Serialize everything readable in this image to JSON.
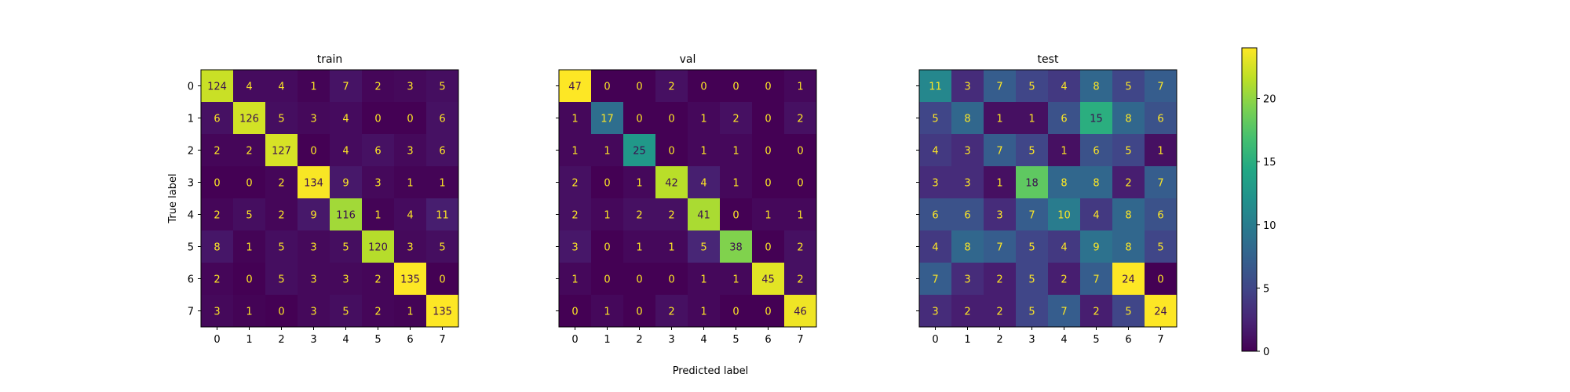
{
  "figure": {
    "shared_xlabel": "Predicted label",
    "shared_ylabel": "True label"
  },
  "colorbar": {
    "min": 0,
    "max": 24,
    "ticks": [
      "0",
      "5",
      "10",
      "15",
      "20"
    ],
    "tick_values": [
      0,
      5,
      10,
      15,
      20
    ],
    "colormap": "viridis"
  },
  "chart_data": [
    {
      "type": "heatmap",
      "title": "train",
      "xlabel": "Predicted label",
      "ylabel": "True label",
      "x_categories": [
        "0",
        "1",
        "2",
        "3",
        "4",
        "5",
        "6",
        "7"
      ],
      "y_categories": [
        "0",
        "1",
        "2",
        "3",
        "4",
        "5",
        "6",
        "7"
      ],
      "matrix": [
        [
          124,
          4,
          4,
          1,
          7,
          2,
          3,
          5
        ],
        [
          6,
          126,
          5,
          3,
          4,
          0,
          0,
          6
        ],
        [
          2,
          2,
          127,
          0,
          4,
          6,
          3,
          6
        ],
        [
          0,
          0,
          2,
          134,
          9,
          3,
          1,
          1
        ],
        [
          2,
          5,
          2,
          9,
          116,
          1,
          4,
          11
        ],
        [
          8,
          1,
          5,
          3,
          5,
          120,
          3,
          5
        ],
        [
          2,
          0,
          5,
          3,
          3,
          2,
          135,
          0
        ],
        [
          3,
          1,
          0,
          3,
          5,
          2,
          1,
          135
        ]
      ]
    },
    {
      "type": "heatmap",
      "title": "val",
      "xlabel": "Predicted label",
      "ylabel": "True label",
      "x_categories": [
        "0",
        "1",
        "2",
        "3",
        "4",
        "5",
        "6",
        "7"
      ],
      "y_categories": [
        "0",
        "1",
        "2",
        "3",
        "4",
        "5",
        "6",
        "7"
      ],
      "matrix": [
        [
          47,
          0,
          0,
          2,
          0,
          0,
          0,
          1
        ],
        [
          1,
          17,
          0,
          0,
          1,
          2,
          0,
          2
        ],
        [
          1,
          1,
          25,
          0,
          1,
          1,
          0,
          0
        ],
        [
          2,
          0,
          1,
          42,
          4,
          1,
          0,
          0
        ],
        [
          2,
          1,
          2,
          2,
          41,
          0,
          1,
          1
        ],
        [
          3,
          0,
          1,
          1,
          5,
          38,
          0,
          2
        ],
        [
          1,
          0,
          0,
          0,
          1,
          1,
          45,
          2
        ],
        [
          0,
          1,
          0,
          2,
          1,
          0,
          0,
          46
        ]
      ]
    },
    {
      "type": "heatmap",
      "title": "test",
      "xlabel": "Predicted label",
      "ylabel": "True label",
      "x_categories": [
        "0",
        "1",
        "2",
        "3",
        "4",
        "5",
        "6",
        "7"
      ],
      "y_categories": [
        "0",
        "1",
        "2",
        "3",
        "4",
        "5",
        "6",
        "7"
      ],
      "matrix": [
        [
          11,
          3,
          7,
          5,
          4,
          8,
          5,
          7
        ],
        [
          5,
          8,
          1,
          1,
          6,
          15,
          8,
          6
        ],
        [
          4,
          3,
          7,
          5,
          1,
          6,
          5,
          1
        ],
        [
          3,
          3,
          1,
          18,
          8,
          8,
          2,
          7
        ],
        [
          6,
          6,
          3,
          7,
          10,
          4,
          8,
          6
        ],
        [
          4,
          8,
          7,
          5,
          4,
          9,
          8,
          5
        ],
        [
          7,
          3,
          2,
          5,
          2,
          7,
          24,
          0
        ],
        [
          3,
          2,
          2,
          5,
          7,
          2,
          5,
          24
        ]
      ]
    }
  ]
}
